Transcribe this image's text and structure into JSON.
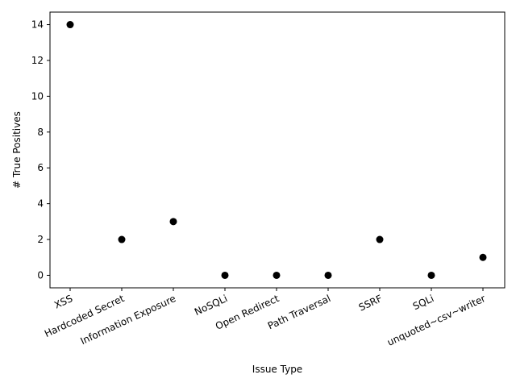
{
  "chart_data": {
    "type": "scatter",
    "title": "",
    "xlabel": "Issue Type",
    "ylabel": "# True Positives",
    "categories": [
      "XSS",
      "Hardcoded Secret",
      "Information Exposure",
      "NoSQLi",
      "Open Redirect",
      "Path Traversal",
      "SSRF",
      "SQLi",
      "unquoted~csv~writer"
    ],
    "values": [
      14,
      2,
      3,
      0,
      0,
      0,
      2,
      0,
      1
    ],
    "ylim": [
      -0.7,
      14.7
    ],
    "yticks": [
      0,
      2,
      4,
      6,
      8,
      10,
      12,
      14
    ],
    "grid": false,
    "marker_color": "#000000"
  }
}
